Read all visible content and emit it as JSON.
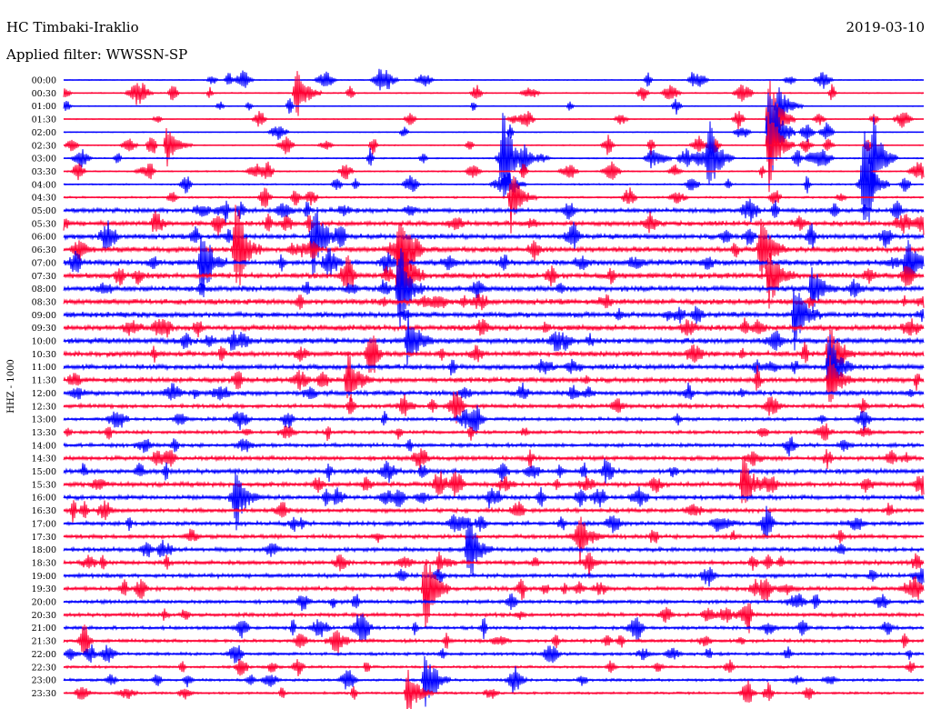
{
  "header": {
    "station": "HC Timbaki-Iraklio",
    "date": "2019-03-10",
    "filter": "Applied filter: WWSSN-SP"
  },
  "chart_data": {
    "type": "line",
    "title": "HC Timbaki-Iraklio",
    "subtitle": "Applied filter: WWSSN-SP",
    "date": "2019-03-10",
    "ylabel": "HHZ - 1000",
    "xlabel": "",
    "grid": false,
    "colors": {
      "even_rows": "#0000ff",
      "odd_rows": "#ff0033"
    },
    "tick_labels": [
      "00:00",
      "00:30",
      "01:00",
      "01:30",
      "02:00",
      "02:30",
      "03:00",
      "03:30",
      "04:00",
      "04:30",
      "05:00",
      "05:30",
      "06:00",
      "06:30",
      "07:00",
      "07:30",
      "08:00",
      "08:30",
      "09:00",
      "09:30",
      "10:00",
      "10:30",
      "11:00",
      "11:30",
      "12:00",
      "12:30",
      "13:00",
      "13:30",
      "14:00",
      "14:30",
      "15:00",
      "15:30",
      "16:00",
      "16:30",
      "17:00",
      "17:30",
      "18:00",
      "18:30",
      "19:00",
      "19:30",
      "20:00",
      "20:30",
      "21:00",
      "21:30",
      "22:00",
      "22:30",
      "23:00",
      "23:30"
    ],
    "noise_level": [
      0.12,
      0.15,
      0.12,
      0.12,
      0.12,
      0.15,
      0.18,
      0.18,
      0.2,
      0.25,
      0.6,
      0.65,
      0.7,
      0.75,
      0.75,
      0.75,
      0.75,
      0.75,
      0.75,
      0.75,
      0.75,
      0.7,
      0.7,
      0.7,
      0.65,
      0.55,
      0.45,
      0.45,
      0.5,
      0.6,
      0.65,
      0.6,
      0.6,
      0.55,
      0.55,
      0.55,
      0.55,
      0.55,
      0.55,
      0.55,
      0.5,
      0.5,
      0.45,
      0.45,
      0.4,
      0.35,
      0.35,
      0.3
    ],
    "events": [
      {
        "row": 1,
        "x": 0.27,
        "amp": 1.5
      },
      {
        "row": 2,
        "x": 0.83,
        "amp": 1.2
      },
      {
        "row": 3,
        "x": 0.82,
        "amp": 2.5
      },
      {
        "row": 4,
        "x": 0.82,
        "amp": 3.0
      },
      {
        "row": 5,
        "x": 0.82,
        "amp": 2.2
      },
      {
        "row": 5,
        "x": 0.12,
        "amp": 1.0
      },
      {
        "row": 6,
        "x": 0.51,
        "amp": 2.5
      },
      {
        "row": 6,
        "x": 0.75,
        "amp": 2.0
      },
      {
        "row": 6,
        "x": 0.94,
        "amp": 2.2
      },
      {
        "row": 8,
        "x": 0.93,
        "amp": 2.5
      },
      {
        "row": 9,
        "x": 0.52,
        "amp": 1.6
      },
      {
        "row": 12,
        "x": 0.29,
        "amp": 2.0
      },
      {
        "row": 13,
        "x": 0.2,
        "amp": 2.2
      },
      {
        "row": 13,
        "x": 0.39,
        "amp": 1.8
      },
      {
        "row": 13,
        "x": 0.81,
        "amp": 1.8
      },
      {
        "row": 14,
        "x": 0.16,
        "amp": 1.5
      },
      {
        "row": 14,
        "x": 0.98,
        "amp": 1.4
      },
      {
        "row": 15,
        "x": 0.39,
        "amp": 2.4
      },
      {
        "row": 15,
        "x": 0.82,
        "amp": 1.6
      },
      {
        "row": 16,
        "x": 0.39,
        "amp": 1.8
      },
      {
        "row": 16,
        "x": 0.87,
        "amp": 1.2
      },
      {
        "row": 18,
        "x": 0.85,
        "amp": 1.6
      },
      {
        "row": 20,
        "x": 0.4,
        "amp": 1.5
      },
      {
        "row": 21,
        "x": 0.89,
        "amp": 1.8
      },
      {
        "row": 22,
        "x": 0.89,
        "amp": 1.6
      },
      {
        "row": 23,
        "x": 0.33,
        "amp": 1.4
      },
      {
        "row": 23,
        "x": 0.89,
        "amp": 1.4
      },
      {
        "row": 31,
        "x": 0.79,
        "amp": 1.4
      },
      {
        "row": 32,
        "x": 0.2,
        "amp": 1.4
      },
      {
        "row": 35,
        "x": 0.6,
        "amp": 1.0
      },
      {
        "row": 36,
        "x": 0.47,
        "amp": 1.6
      },
      {
        "row": 39,
        "x": 0.42,
        "amp": 2.0
      },
      {
        "row": 46,
        "x": 0.42,
        "amp": 1.4
      },
      {
        "row": 47,
        "x": 0.4,
        "amp": 1.2
      }
    ]
  }
}
